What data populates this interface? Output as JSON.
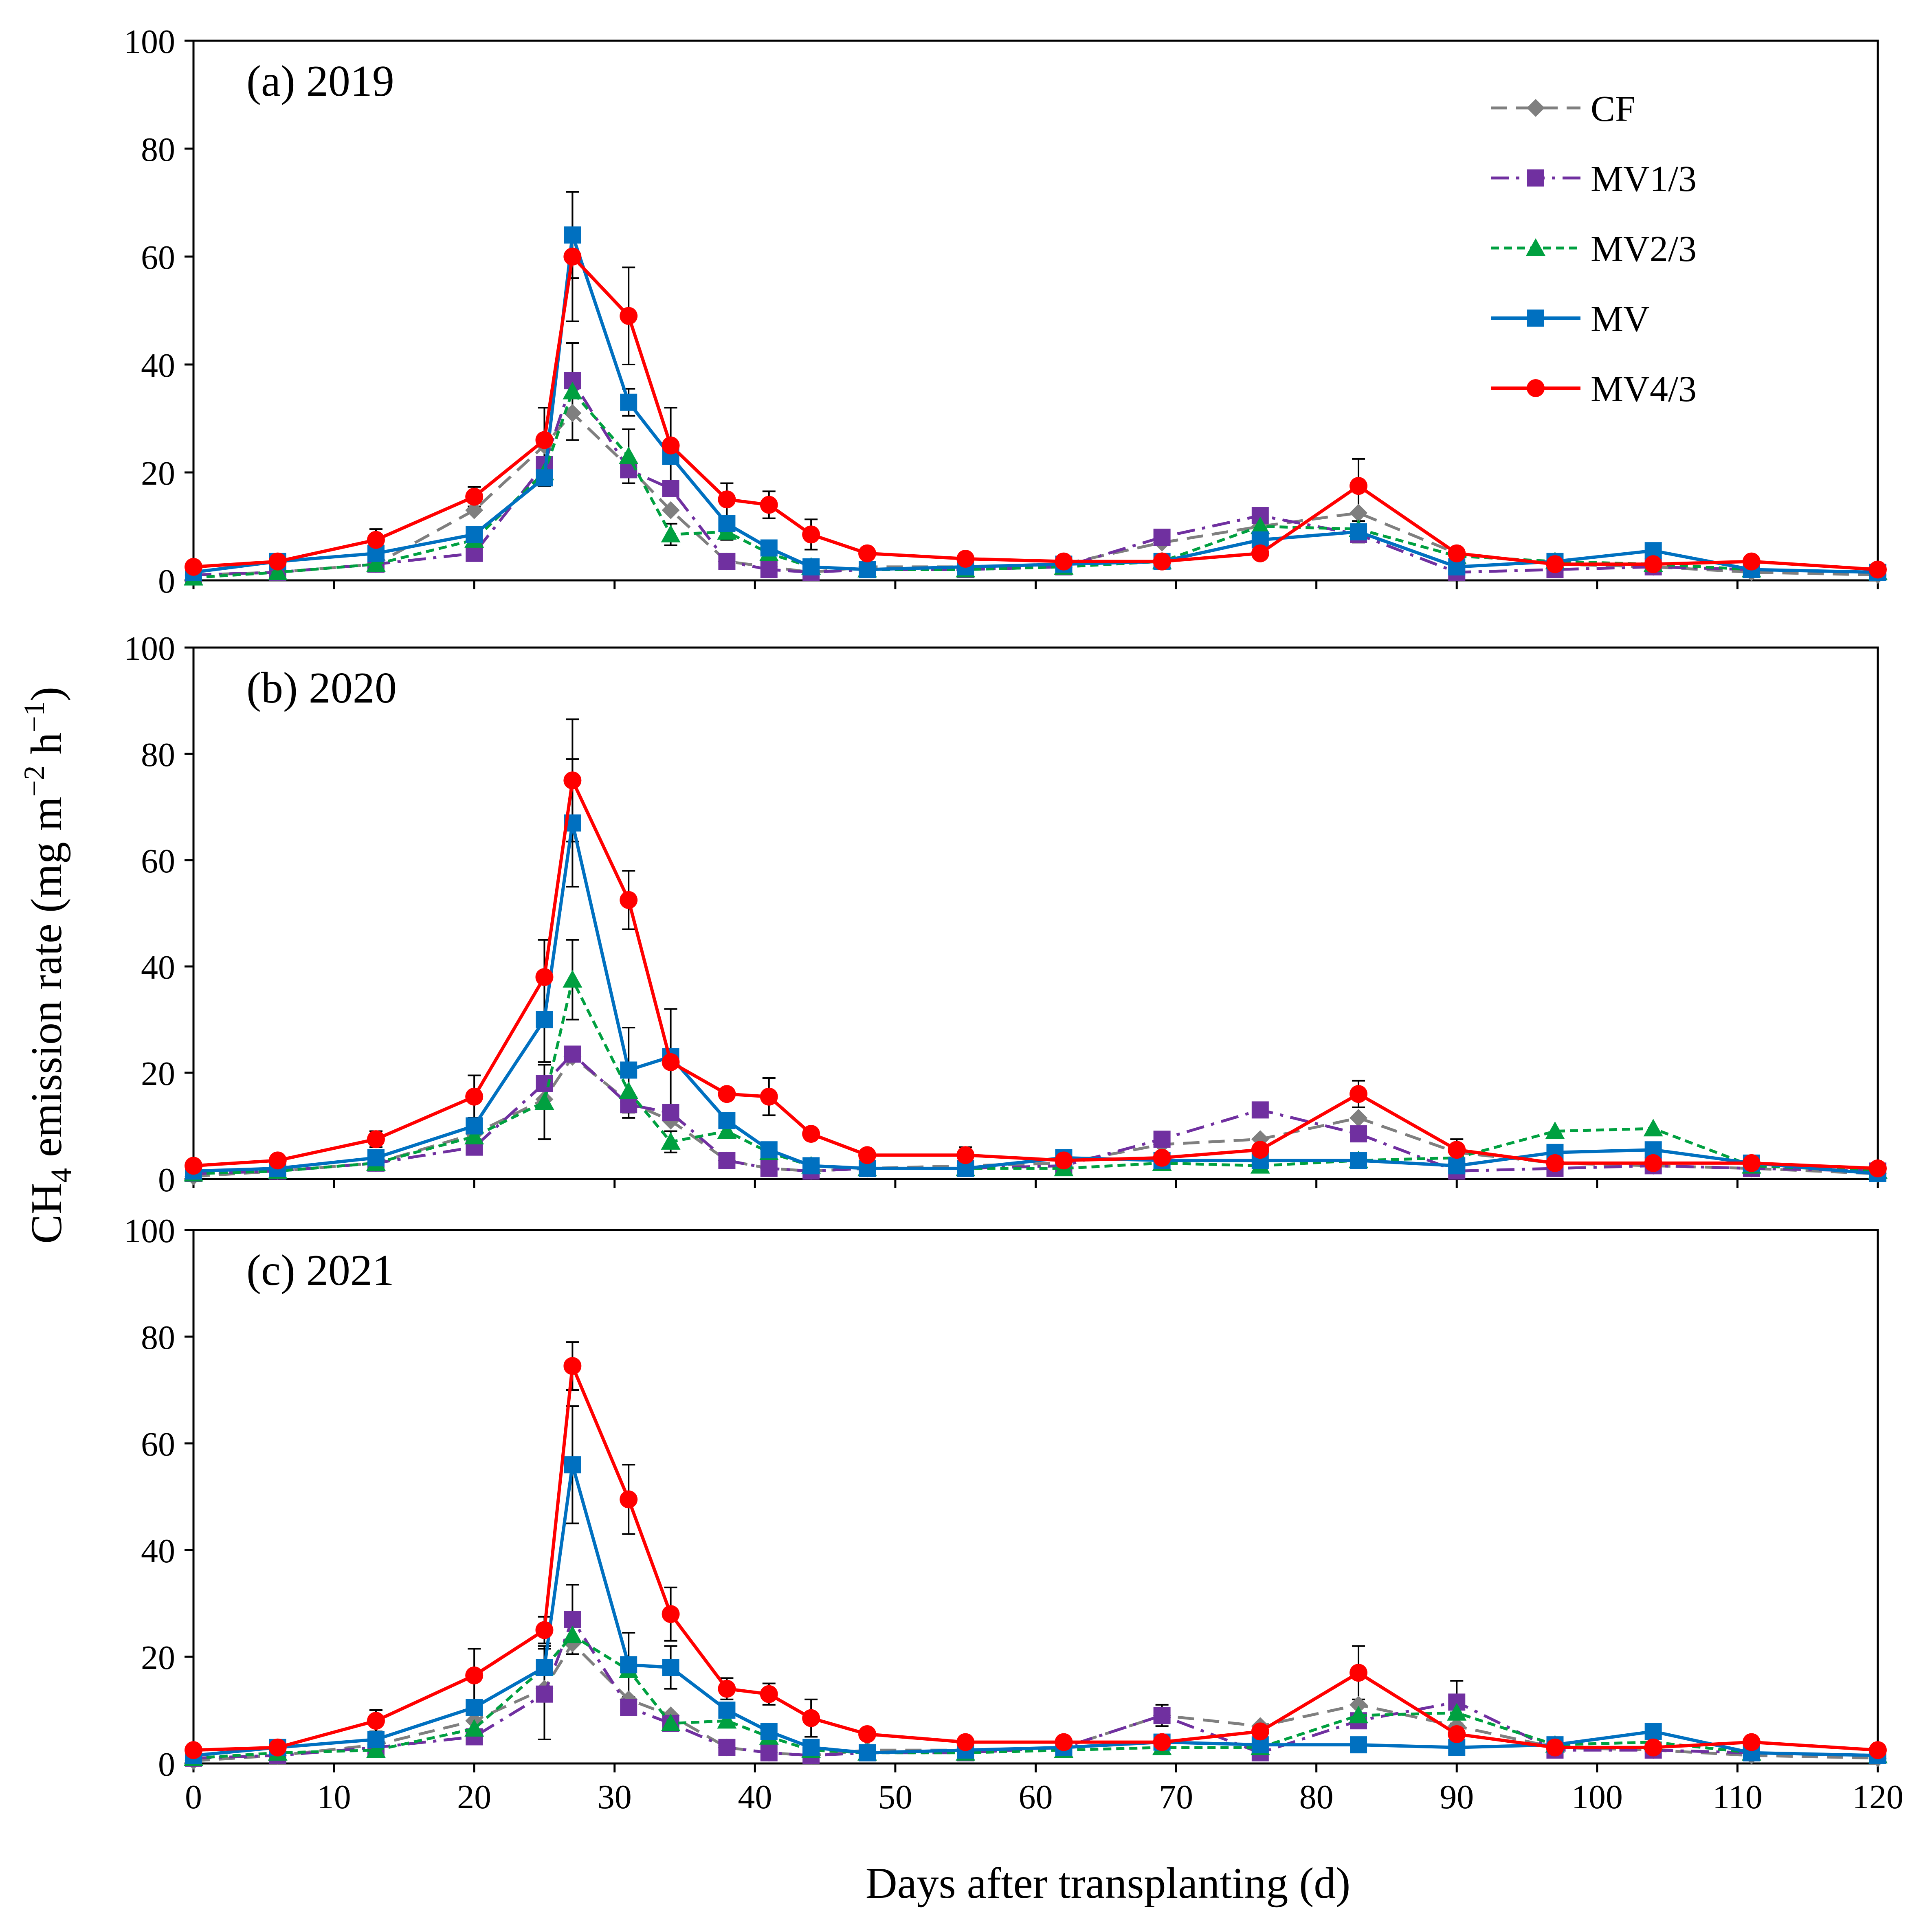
{
  "figure": {
    "ylabel_main": "CH",
    "ylabel_sub": "4",
    "ylabel_rest": " emission rate (mg m",
    "ylabel_sup1": "−2",
    "ylabel_mid": " h",
    "ylabel_sup2": "−1",
    "ylabel_end": ")",
    "xlabel": "Days after transplanting (d)"
  },
  "legend": [
    {
      "name": "CF",
      "color": "#7f7f7f",
      "marker": "diamond",
      "dash": "dashed"
    },
    {
      "name": "MV1/3",
      "color": "#7030a0",
      "marker": "square",
      "dash": "dashdot"
    },
    {
      "name": "MV2/3",
      "color": "#00a040",
      "marker": "triangle",
      "dash": "dotted"
    },
    {
      "name": "MV",
      "color": "#0070c0",
      "marker": "square",
      "dash": "solid"
    },
    {
      "name": "MV4/3",
      "color": "#ff0000",
      "marker": "circle",
      "dash": "solid"
    }
  ],
  "chart_data": [
    {
      "type": "line",
      "title": "(a) 2019",
      "xlim": [
        0,
        120
      ],
      "ylim": [
        0,
        100
      ],
      "xticks": [
        0,
        10,
        20,
        30,
        40,
        50,
        60,
        70,
        80,
        90,
        100,
        110,
        120
      ],
      "yticks": [
        0,
        20,
        40,
        60,
        80,
        100
      ],
      "x": [
        0,
        6,
        13,
        20,
        25,
        27,
        31,
        34,
        38,
        41,
        44,
        48,
        55,
        62,
        69,
        76,
        83,
        90,
        97,
        104,
        111,
        120
      ],
      "series": [
        {
          "name": "CF",
          "values": [
            1,
            1.5,
            3,
            13,
            25,
            31,
            21,
            13,
            3.5,
            2.5,
            1.5,
            2.5,
            2.5,
            3,
            7,
            10,
            12.5,
            5,
            3,
            2.5,
            1.5,
            1
          ]
        },
        {
          "name": "MV1/3",
          "values": [
            1,
            1.5,
            3,
            5,
            21.5,
            37,
            20.5,
            17,
            3.5,
            2,
            1.5,
            2,
            2,
            2.5,
            8,
            12,
            8.5,
            1.5,
            2,
            2.5,
            2,
            1.5
          ]
        },
        {
          "name": "MV2/3",
          "values": [
            0.5,
            1.5,
            3,
            7.5,
            20,
            35,
            23,
            8.5,
            9,
            5,
            2.5,
            2,
            2,
            2.5,
            3.5,
            10,
            9.5,
            4.5,
            3.5,
            3,
            2,
            1.5
          ]
        },
        {
          "name": "MV",
          "values": [
            1.5,
            3.5,
            5,
            8.5,
            19,
            64,
            33,
            23,
            10.5,
            6,
            2.5,
            2,
            2.5,
            3,
            3.5,
            7.5,
            9,
            2.5,
            3.5,
            5.5,
            2,
            1.5
          ]
        },
        {
          "name": "MV4/3",
          "values": [
            2.5,
            3.5,
            7.5,
            15.5,
            26,
            60,
            49,
            25,
            15,
            14,
            8.5,
            5,
            4,
            3.5,
            3.5,
            5,
            17.5,
            5,
            3,
            3,
            3.5,
            2
          ]
        }
      ],
      "errors": [
        {
          "name": "MV4/3",
          "x": [
            0,
            13,
            20,
            25,
            27,
            31,
            34,
            38,
            41,
            44,
            83
          ],
          "err": [
            0.5,
            2,
            1.8,
            6,
            12,
            9,
            7,
            3,
            2.5,
            2.8,
            5
          ]
        },
        {
          "name": "MV",
          "x": [
            25,
            27,
            31,
            83
          ],
          "err": [
            1.5,
            8,
            2.5,
            2
          ]
        },
        {
          "name": "MV2/3",
          "x": [
            27,
            31,
            34,
            38
          ],
          "err": [
            9,
            5,
            2,
            1.5
          ]
        }
      ]
    },
    {
      "type": "line",
      "title": "(b) 2020",
      "xlim": [
        0,
        120
      ],
      "ylim": [
        0,
        100
      ],
      "xticks": [
        0,
        10,
        20,
        30,
        40,
        50,
        60,
        70,
        80,
        90,
        100,
        110,
        120
      ],
      "yticks": [
        0,
        20,
        40,
        60,
        80,
        100
      ],
      "x": [
        0,
        6,
        13,
        20,
        25,
        27,
        31,
        34,
        38,
        41,
        44,
        48,
        55,
        62,
        69,
        76,
        83,
        90,
        97,
        104,
        111,
        120
      ],
      "series": [
        {
          "name": "CF",
          "values": [
            0.5,
            1.5,
            3,
            8.5,
            15,
            23,
            14.5,
            11,
            3.5,
            2,
            1.5,
            2,
            2.5,
            3,
            6.5,
            7.5,
            11.5,
            5,
            3,
            2.5,
            2,
            1
          ]
        },
        {
          "name": "MV1/3",
          "values": [
            1,
            1.5,
            3,
            6,
            18,
            23.5,
            14,
            12.5,
            3.5,
            2,
            1.5,
            2,
            2,
            2.5,
            7.5,
            13,
            8.5,
            1.5,
            2,
            2.5,
            2,
            1.5
          ]
        },
        {
          "name": "MV2/3",
          "values": [
            1,
            1.5,
            3,
            8,
            14.5,
            37.5,
            16.5,
            7,
            9,
            5,
            2.5,
            2,
            2,
            2,
            3,
            2.5,
            3.5,
            4,
            9,
            9.5,
            2.5,
            1.5
          ]
        },
        {
          "name": "MV",
          "values": [
            1.5,
            2,
            4,
            10,
            30,
            67,
            20.5,
            23,
            11,
            5.5,
            2.5,
            2,
            2,
            4,
            3.5,
            3.5,
            3.5,
            2.5,
            5,
            5.5,
            3,
            1
          ]
        },
        {
          "name": "MV4/3",
          "values": [
            2.5,
            3.5,
            7.5,
            15.5,
            38,
            75,
            52.5,
            22,
            16,
            15.5,
            8.5,
            4.5,
            4.5,
            3.5,
            4,
            5.5,
            16,
            5.5,
            3,
            3,
            3,
            2
          ]
        }
      ],
      "errors": [
        {
          "name": "MV4/3",
          "x": [
            13,
            20,
            25,
            27,
            31,
            34,
            38,
            41,
            44,
            55,
            83,
            90
          ],
          "err": [
            1.5,
            4,
            7,
            11.5,
            5.5,
            10,
            1,
            3.5,
            1,
            1.5,
            2.5,
            2
          ]
        },
        {
          "name": "MV",
          "x": [
            25,
            27,
            31
          ],
          "err": [
            8,
            12,
            8
          ]
        },
        {
          "name": "MV2/3",
          "x": [
            25,
            27,
            31,
            34
          ],
          "err": [
            7,
            7.5,
            5,
            2
          ]
        }
      ]
    },
    {
      "type": "line",
      "title": "(c) 2021",
      "xlim": [
        0,
        120
      ],
      "ylim": [
        0,
        100
      ],
      "xticks": [
        0,
        10,
        20,
        30,
        40,
        50,
        60,
        70,
        80,
        90,
        100,
        110,
        120
      ],
      "yticks": [
        0,
        20,
        40,
        60,
        80,
        100
      ],
      "x": [
        0,
        6,
        13,
        20,
        25,
        27,
        31,
        34,
        38,
        41,
        44,
        48,
        55,
        62,
        69,
        76,
        83,
        90,
        97,
        104,
        111,
        120
      ],
      "series": [
        {
          "name": "CF",
          "values": [
            0.5,
            1.5,
            3.5,
            8,
            14,
            22.5,
            12,
            9,
            3,
            2,
            1.5,
            2.5,
            2.5,
            3,
            9,
            7,
            11,
            7,
            3,
            2.5,
            1.5,
            1
          ]
        },
        {
          "name": "MV1/3",
          "values": [
            1,
            1.5,
            3,
            5,
            13,
            27,
            10.5,
            7.5,
            3,
            2,
            1.5,
            2,
            2,
            3,
            9,
            2,
            8,
            11.5,
            2.5,
            2.5,
            2,
            1.5
          ]
        },
        {
          "name": "MV2/3",
          "values": [
            1,
            2,
            2.5,
            6.5,
            18,
            24,
            17.5,
            7.5,
            8,
            5,
            2.5,
            2,
            2,
            2.5,
            3,
            3,
            9,
            9.5,
            3.5,
            4,
            2,
            1.5
          ]
        },
        {
          "name": "MV",
          "values": [
            1.5,
            3,
            4.5,
            10.5,
            18,
            56,
            18.5,
            18,
            10,
            6,
            3,
            2,
            2.5,
            3,
            4,
            3.5,
            3.5,
            3,
            3.5,
            6,
            2,
            1.5
          ]
        },
        {
          "name": "MV4/3",
          "values": [
            2.5,
            3,
            8,
            16.5,
            25,
            74.5,
            49.5,
            28,
            14,
            13,
            8.5,
            5.5,
            4,
            4,
            4,
            6,
            17,
            5.5,
            3,
            3,
            4,
            2.5
          ]
        }
      ],
      "errors": [
        {
          "name": "MV4/3",
          "x": [
            13,
            20,
            25,
            27,
            31,
            34,
            38,
            41,
            44,
            83
          ],
          "err": [
            2,
            5,
            2.5,
            4.5,
            6.5,
            5,
            2,
            2,
            3.5,
            5
          ]
        },
        {
          "name": "MV",
          "x": [
            25,
            27,
            31,
            34
          ],
          "err": [
            4,
            11,
            6,
            4
          ]
        },
        {
          "name": "MV1/3",
          "x": [
            25,
            27,
            69,
            90
          ],
          "err": [
            8.5,
            6.5,
            2,
            4
          ]
        }
      ]
    }
  ]
}
